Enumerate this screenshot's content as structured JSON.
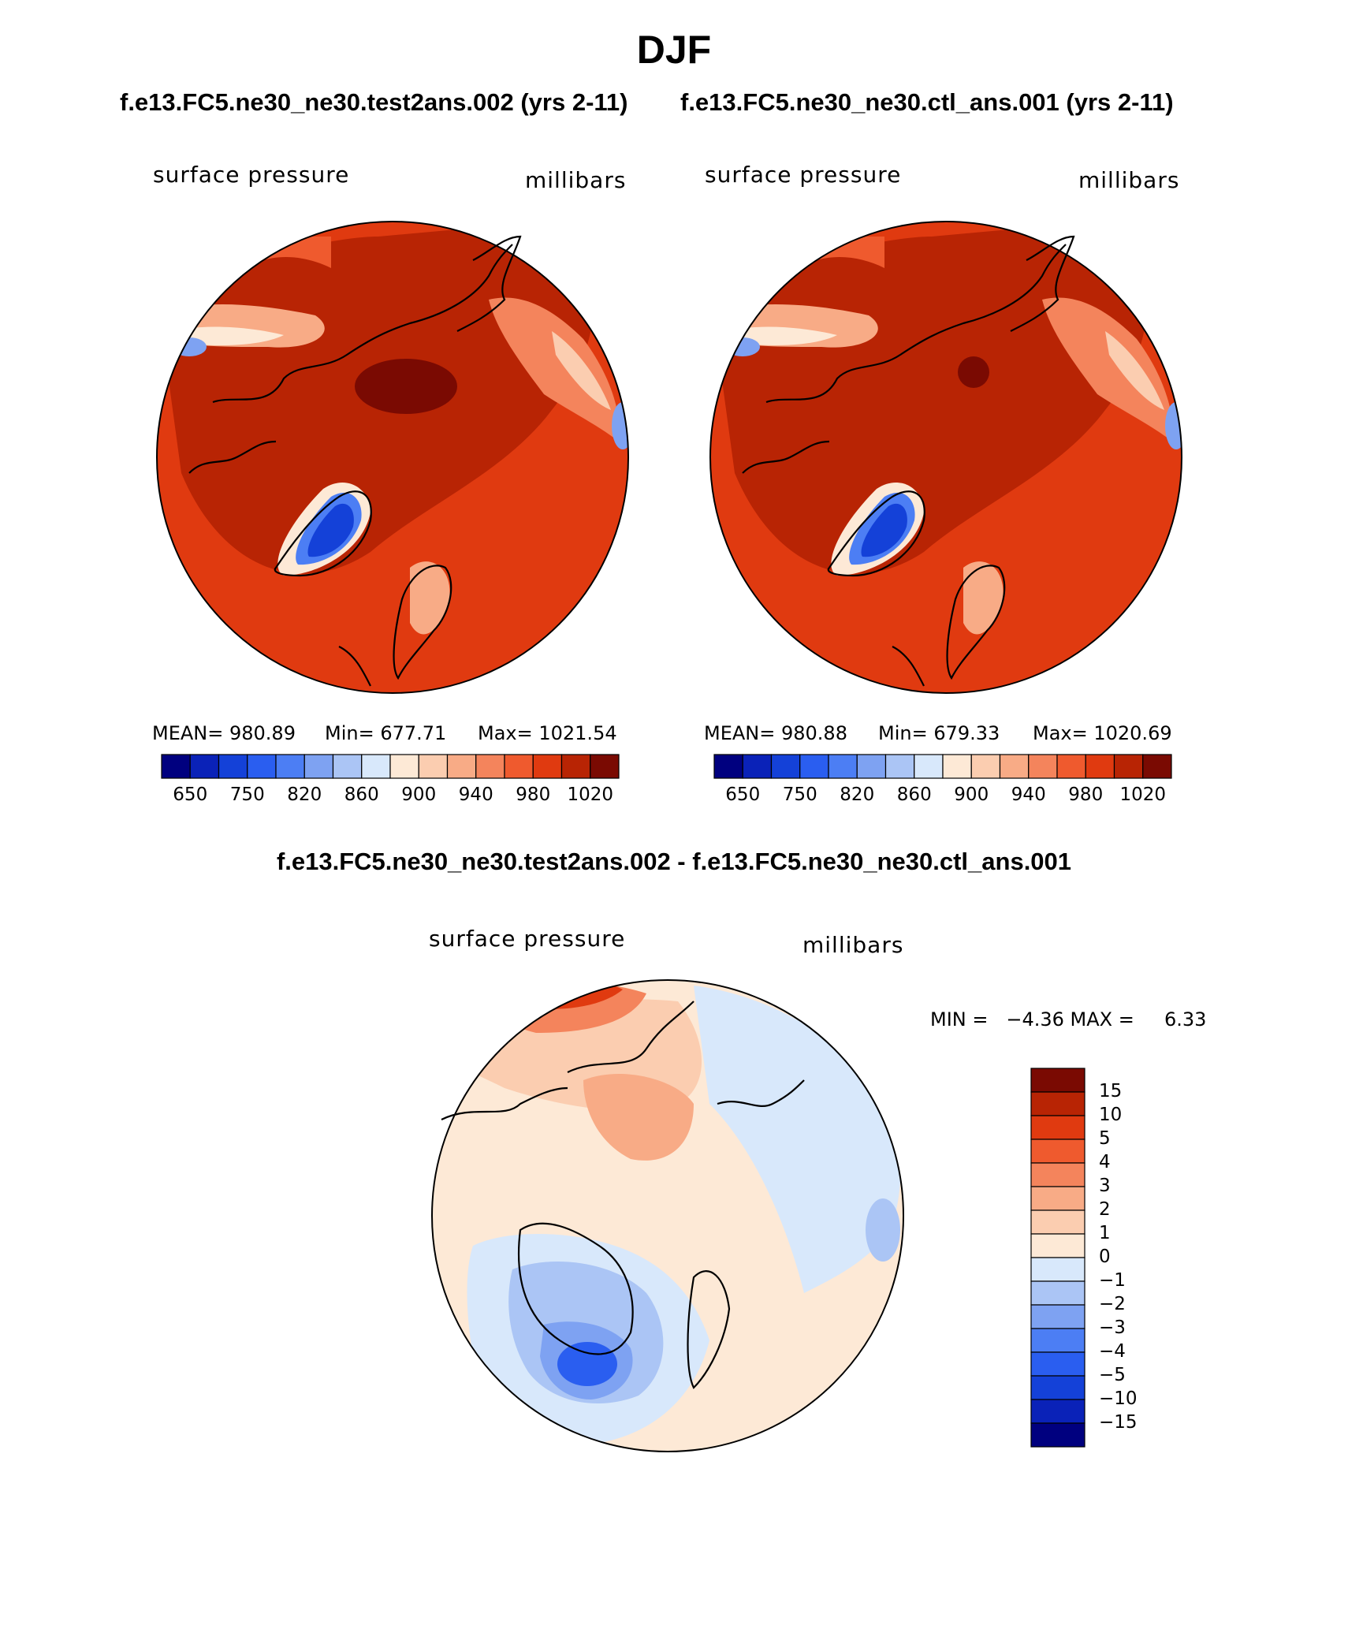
{
  "figure": {
    "title": "DJF",
    "case_test": "f.e13.FC5.ne30_ne30.test2ans.002 (yrs 2-11)",
    "case_ctl": "f.e13.FC5.ne30_ne30.ctl_ans.001 (yrs 2-11)",
    "diff_title": "f.e13.FC5.ne30_ne30.test2ans.002 - f.e13.FC5.ne30_ne30.ctl_ans.001"
  },
  "panels": {
    "test": {
      "variable": "surface pressure",
      "units": "millibars",
      "mean_text": "MEAN= 980.89",
      "min_text": "Min= 677.71",
      "max_text": "Max= 1021.54"
    },
    "ctl": {
      "variable": "surface pressure",
      "units": "millibars",
      "mean_text": "MEAN= 980.88",
      "min_text": "Min= 679.33",
      "max_text": "Max= 1020.69"
    },
    "diff": {
      "variable": "surface pressure",
      "units": "millibars",
      "minmax_text": "MIN =   −4.36 MAX =     6.33"
    }
  },
  "colorbars": {
    "abs_labels": [
      "650",
      "750",
      "820",
      "860",
      "900",
      "940",
      "980",
      "1020"
    ],
    "abs_colors": [
      "#00007f",
      "#0a22b8",
      "#1441d8",
      "#2a5ef0",
      "#4c7ef4",
      "#7ea2f2",
      "#abc5f5",
      "#d8e8fb",
      "#fde9d6",
      "#fbcdb0",
      "#f8ab86",
      "#f4845c",
      "#ef5a2e",
      "#e03a10",
      "#b82404",
      "#7a0a02"
    ],
    "diff_labels": [
      "15",
      "10",
      "5",
      "4",
      "3",
      "2",
      "1",
      "0",
      "−1",
      "−2",
      "−3",
      "−4",
      "−5",
      "−10",
      "−15"
    ],
    "diff_colors": [
      "#7a0a02",
      "#b82404",
      "#e03a10",
      "#ef5a2e",
      "#f4845c",
      "#f8ab86",
      "#fbcdb0",
      "#fde9d6",
      "#d8e8fb",
      "#abc5f5",
      "#7ea2f2",
      "#4c7ef4",
      "#2a5ef0",
      "#1441d8",
      "#0a22b8",
      "#00007f"
    ]
  },
  "chart_data": [
    {
      "type": "heatmap",
      "title": "surface pressure",
      "subtitle": "f.e13.FC5.ne30_ne30.test2ans.002 (yrs 2-11)",
      "units": "millibars",
      "projection": "north polar stereographic",
      "mean": 980.89,
      "min": 677.71,
      "max": 1021.54,
      "contour_levels": [
        650,
        700,
        750,
        800,
        820,
        840,
        860,
        880,
        900,
        920,
        940,
        960,
        980,
        1000,
        1020
      ]
    },
    {
      "type": "heatmap",
      "title": "surface pressure",
      "subtitle": "f.e13.FC5.ne30_ne30.ctl_ans.001 (yrs 2-11)",
      "units": "millibars",
      "projection": "north polar stereographic",
      "mean": 980.88,
      "min": 679.33,
      "max": 1020.69,
      "contour_levels": [
        650,
        700,
        750,
        800,
        820,
        840,
        860,
        880,
        900,
        920,
        940,
        960,
        980,
        1000,
        1020
      ]
    },
    {
      "type": "heatmap",
      "title": "surface pressure",
      "subtitle": "f.e13.FC5.ne30_ne30.test2ans.002 - f.e13.FC5.ne30_ne30.ctl_ans.001",
      "units": "millibars",
      "projection": "north polar stereographic",
      "min": -4.36,
      "max": 6.33,
      "contour_levels": [
        -15,
        -10,
        -5,
        -4,
        -3,
        -2,
        -1,
        0,
        1,
        2,
        3,
        4,
        5,
        10,
        15
      ]
    }
  ]
}
